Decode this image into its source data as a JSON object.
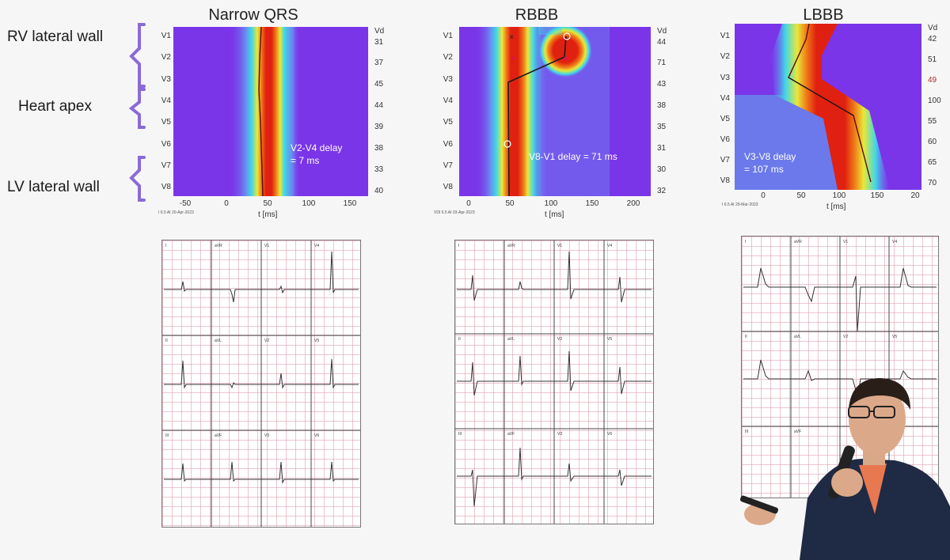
{
  "region_labels": [
    "RV lateral wall",
    "Heart apex",
    "LV lateral wall"
  ],
  "maps": [
    {
      "title": "Narrow QRS",
      "leads": [
        "V1",
        "V2",
        "V3",
        "V4",
        "V5",
        "V6",
        "V7",
        "V8"
      ],
      "vd_header": "Vd",
      "vd_values": [
        "31",
        "37",
        "45",
        "44",
        "39",
        "38",
        "33",
        "40"
      ],
      "x_ticks": [
        "-50",
        "0",
        "50",
        "100",
        "150"
      ],
      "x_label": "t [ms]",
      "delay_text": [
        "V2-V4 delay",
        "= 7 ms"
      ],
      "footer": "I 6.5 AI 20-Apr-2023"
    },
    {
      "title": "RBBB",
      "leads": [
        "V1",
        "V2",
        "V3",
        "V4",
        "V5",
        "V6",
        "V7",
        "V8"
      ],
      "vd_header": "Vd",
      "vd_values": [
        "44",
        "71",
        "43",
        "38",
        "35",
        "31",
        "30",
        "32"
      ],
      "x_ticks": [
        "0",
        "50",
        "100",
        "150",
        "200"
      ],
      "x_label": "t [ms]",
      "delay_text": [
        "V8-V1 delay = 71 ms"
      ],
      "footer": "VDI 6.5 AI 03-Apr-2023"
    },
    {
      "title": "LBBB",
      "leads": [
        "V1",
        "V2",
        "V3",
        "V4",
        "V5",
        "V6",
        "V7",
        "V8"
      ],
      "vd_header": "Vd",
      "vd_values": [
        "42",
        "51",
        "49",
        "100",
        "55",
        "60",
        "65",
        "70"
      ],
      "x_ticks": [
        "0",
        "50",
        "100",
        "150",
        "20"
      ],
      "x_label": "t [ms]",
      "delay_text": [
        "V3-V8 delay",
        "= 107 ms"
      ],
      "footer": "I 6.5 AI 29-Mar-2023"
    }
  ],
  "ecg_lead_names": [
    [
      "I",
      "aVR",
      "V1",
      "V4"
    ],
    [
      "II",
      "aVL",
      "V2",
      "V5"
    ],
    [
      "III",
      "aVF",
      "V3",
      "V6"
    ]
  ],
  "colors": {
    "background": "#7a35e8",
    "core": "#e02010",
    "delay_line": "#1a1a1a"
  }
}
